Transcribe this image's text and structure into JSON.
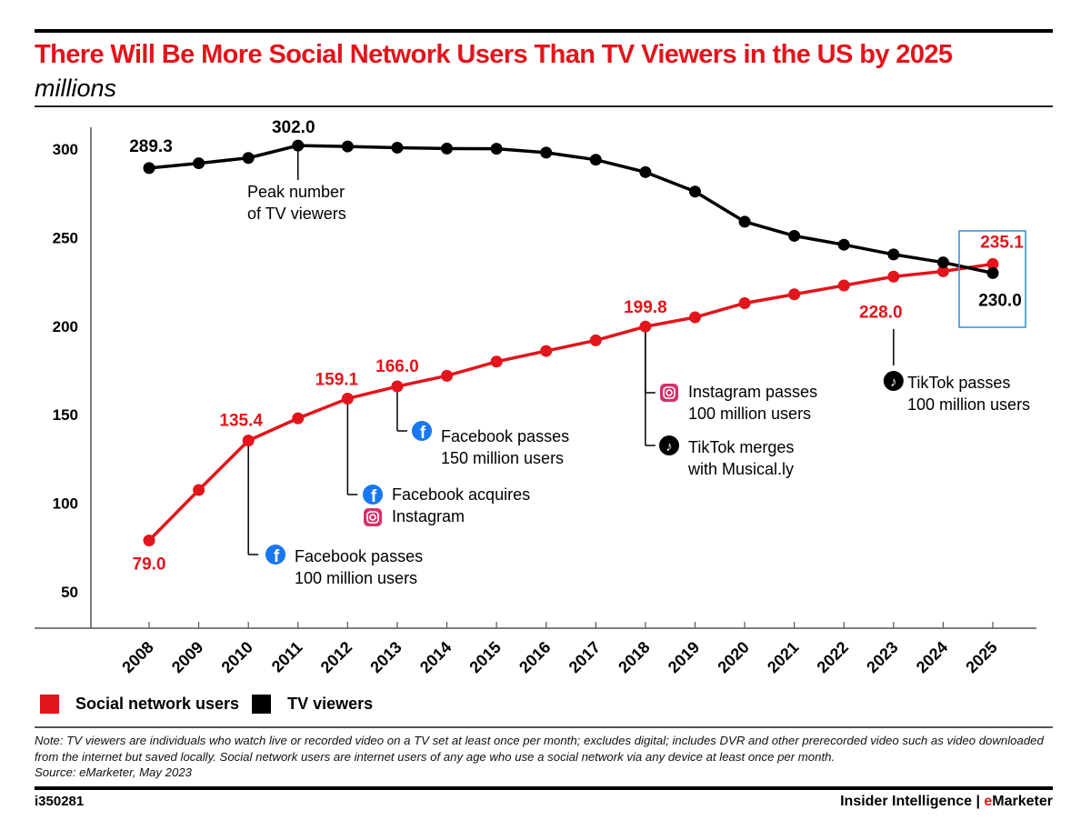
{
  "header": {
    "title": "There Will Be More Social Network Users Than TV Viewers in the US by 2025",
    "subtitle": "millions"
  },
  "colors": {
    "social": "#e3141b",
    "tv": "#000000",
    "highlight_box": "#2a8fd6",
    "facebook": "#1877f2"
  },
  "chart_data": {
    "type": "line",
    "title": "There Will Be More Social Network Users Than TV Viewers in the US by 2025",
    "subtitle": "millions",
    "xlabel": "",
    "ylabel": "millions",
    "x": [
      "2008",
      "2009",
      "2010",
      "2011",
      "2012",
      "2013",
      "2014",
      "2015",
      "2016",
      "2017",
      "2018",
      "2019",
      "2020",
      "2021",
      "2022",
      "2023",
      "2024",
      "2025"
    ],
    "yticks": [
      50,
      100,
      150,
      200,
      250,
      300
    ],
    "ylim": [
      30,
      315
    ],
    "grid": false,
    "legend_position": "bottom-left",
    "series": [
      {
        "name": "Social network users",
        "color": "#e3141b",
        "values": [
          79.0,
          107.5,
          135.4,
          148.0,
          159.1,
          166.0,
          172.0,
          180.0,
          186.0,
          192.0,
          199.8,
          205.0,
          213.0,
          218.0,
          223.0,
          228.0,
          231.0,
          235.1
        ],
        "labels": {
          "2008": "79.0",
          "2010": "135.4",
          "2012": "159.1",
          "2013": "166.0",
          "2018": "199.8",
          "2023": "228.0",
          "2025": "235.1"
        }
      },
      {
        "name": "TV viewers",
        "color": "#000000",
        "values": [
          289.3,
          292.0,
          295.0,
          302.0,
          301.5,
          300.8,
          300.3,
          300.2,
          298.0,
          294.0,
          287.0,
          276.0,
          259.0,
          251.0,
          246.0,
          240.5,
          236.0,
          230.0
        ],
        "labels": {
          "2008": "289.3",
          "2011": "302.0",
          "2025": "230.0"
        }
      }
    ],
    "annotations": [
      {
        "series": "TV viewers",
        "x": "2011",
        "lines": [
          "Peak number",
          "of TV viewers"
        ],
        "icons": []
      },
      {
        "series": "Social network users",
        "x": "2010",
        "lines": [
          "Facebook passes",
          "100 million users"
        ],
        "icons": [
          "facebook"
        ]
      },
      {
        "series": "Social network users",
        "x": "2012",
        "lines": [
          "Facebook acquires",
          "Instagram"
        ],
        "icons": [
          "facebook",
          "instagram"
        ]
      },
      {
        "series": "Social network users",
        "x": "2013",
        "lines": [
          "Facebook passes",
          "150 million users"
        ],
        "icons": [
          "facebook"
        ]
      },
      {
        "series": "Social network users",
        "x": "2018",
        "lines": [
          "Instagram passes",
          "100 million users"
        ],
        "icons": [
          "instagram"
        ]
      },
      {
        "series": "Social network users",
        "x": "2018",
        "lines": [
          "TikTok merges",
          "with Musical.ly"
        ],
        "icons": [
          "tiktok"
        ]
      },
      {
        "series": "Social network users",
        "x": "2023",
        "lines": [
          "TikTok passes",
          "100 million users"
        ],
        "icons": [
          "tiktok"
        ]
      }
    ],
    "highlight": {
      "x": "2025",
      "note": "boxed final values"
    }
  },
  "legend": [
    {
      "label": "Social network users",
      "color": "#e3141b"
    },
    {
      "label": "TV viewers",
      "color": "#000000"
    }
  ],
  "footer": {
    "note": "Note: TV viewers are individuals who watch live or recorded video on a TV set at least once per month; excludes digital; includes DVR and other prerecorded video such as video downloaded from the internet but saved locally. Social network users are internet users of any age who use a social network via any device at least once per month.",
    "source": "Source: eMarketer, May 2023",
    "chart_id": "i350281",
    "brand_prefix": "Insider Intelligence | ",
    "brand_e": "e",
    "brand_rest": "Marketer"
  }
}
